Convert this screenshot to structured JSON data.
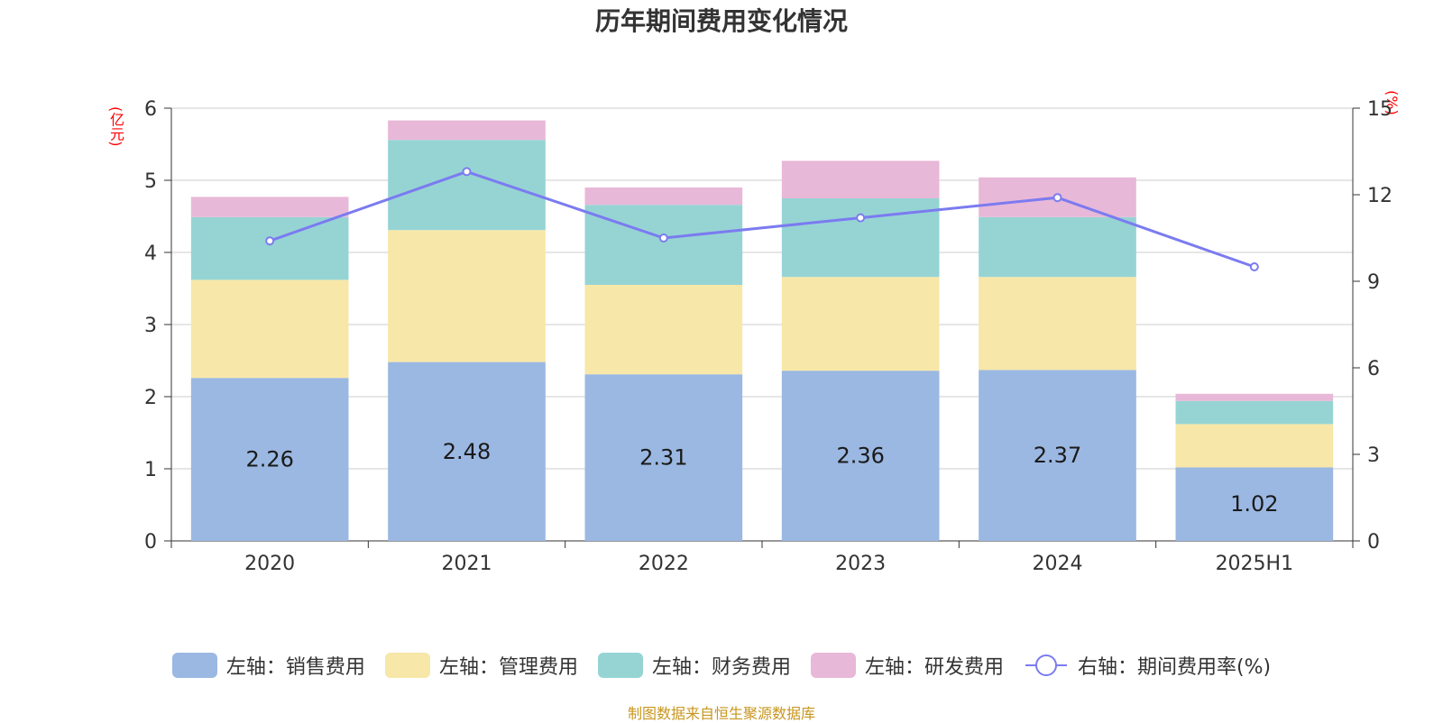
{
  "title": "历年期间费用变化情况",
  "y_left_unit": "(亿元)",
  "y_right_unit": "(%)",
  "footer": "制图数据来自恒生聚源数据库",
  "legend": [
    {
      "label": "左轴：销售费用",
      "color": "#9bb8e2"
    },
    {
      "label": "左轴：管理费用",
      "color": "#f7e7a8"
    },
    {
      "label": "左轴：财务费用",
      "color": "#96d4d4"
    },
    {
      "label": "左轴：研发费用",
      "color": "#e8b8d8"
    },
    {
      "label": "右轴：期间费用率(%)",
      "color": "#7b7bf0"
    }
  ],
  "chart_data": {
    "type": "bar",
    "title": "历年期间费用变化情况",
    "categories": [
      "2020",
      "2021",
      "2022",
      "2023",
      "2024",
      "2025H1"
    ],
    "series": [
      {
        "name": "左轴：销售费用",
        "axis": "left",
        "values": [
          2.26,
          2.48,
          2.31,
          2.36,
          2.37,
          1.02
        ],
        "color": "#9bb8e2",
        "labels_shown": true
      },
      {
        "name": "左轴：管理费用",
        "axis": "left",
        "values": [
          1.36,
          1.83,
          1.24,
          1.3,
          1.29,
          0.6
        ],
        "color": "#f7e7a8"
      },
      {
        "name": "左轴：财务费用",
        "axis": "left",
        "values": [
          0.87,
          1.25,
          1.11,
          1.09,
          0.83,
          0.32
        ],
        "color": "#96d4d4"
      },
      {
        "name": "左轴：研发费用",
        "axis": "left",
        "values": [
          0.28,
          0.27,
          0.24,
          0.52,
          0.55,
          0.1
        ],
        "color": "#e8b8d8"
      },
      {
        "name": "右轴：期间费用率(%)",
        "axis": "right",
        "type": "line",
        "values": [
          10.4,
          12.8,
          10.5,
          11.2,
          11.9,
          9.5
        ],
        "color": "#7b7bf0"
      }
    ],
    "y_left": {
      "label": "(亿元)",
      "range": [
        0,
        6
      ],
      "ticks": [
        0,
        1,
        2,
        3,
        4,
        5,
        6
      ]
    },
    "y_right": {
      "label": "(%)",
      "range": [
        0,
        15
      ],
      "ticks": [
        0,
        3,
        6,
        9,
        12,
        15
      ]
    },
    "grid": true,
    "legend_position": "bottom"
  }
}
